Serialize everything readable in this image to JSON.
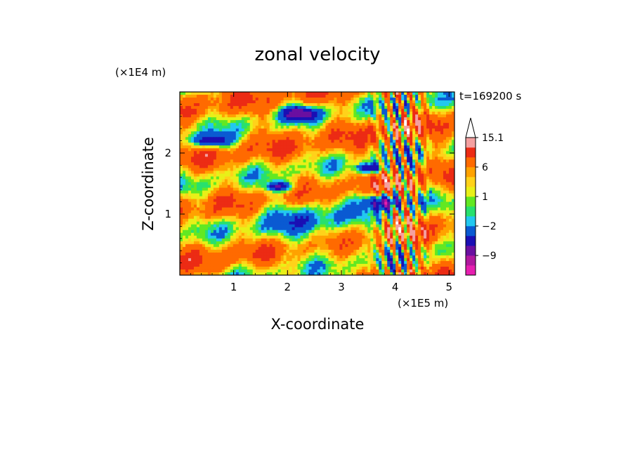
{
  "chart_data": {
    "type": "heatmap",
    "title": "zonal velocity",
    "xlabel": "X-coordinate",
    "ylabel": "Z-coordinate",
    "x_unit": "(×1E5 m)",
    "y_unit": "(×1E4 m)",
    "time_label": "t=169200 s",
    "xlim": [
      0,
      5.1
    ],
    "ylim": [
      0,
      3.0
    ],
    "x_ticks": [
      1,
      2,
      3,
      4,
      5
    ],
    "y_ticks": [
      1,
      2
    ],
    "colorbar": {
      "labels": [
        "15.1",
        "6",
        "1",
        "−2",
        "−9"
      ],
      "label_values": [
        15.1,
        6,
        1,
        -2,
        -9
      ],
      "levels": [
        -15,
        -12,
        -9,
        -6,
        -3,
        -2,
        -1,
        0,
        1,
        2,
        3,
        6,
        9,
        12,
        15.1
      ],
      "colors": [
        "#e61fb0",
        "#b0189e",
        "#6a0fa0",
        "#1a0fb4",
        "#0a5ad2",
        "#22c8f0",
        "#28e06e",
        "#62e822",
        "#e8f018",
        "#ffd21a",
        "#ffa200",
        "#ff6a00",
        "#ec2b14",
        "#f4a0a0",
        "#ffffff"
      ]
    }
  }
}
